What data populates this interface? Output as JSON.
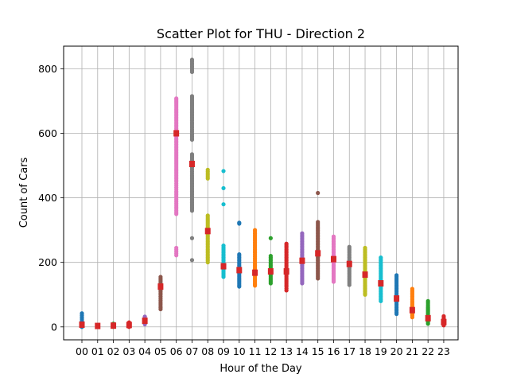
{
  "chart_data": {
    "type": "scatter",
    "title": "Scatter Plot for THU - Direction 2",
    "xlabel": "Hour of the Day",
    "ylabel": "Count of Cars",
    "categories": [
      "00",
      "01",
      "02",
      "03",
      "04",
      "05",
      "06",
      "07",
      "08",
      "09",
      "10",
      "11",
      "12",
      "13",
      "14",
      "15",
      "16",
      "17",
      "18",
      "19",
      "20",
      "21",
      "22",
      "23"
    ],
    "yticks": [
      0,
      200,
      400,
      600,
      800
    ],
    "ylim": [
      -40,
      870
    ],
    "grid": true,
    "legend": "none",
    "mean_marker_color": "#d62728",
    "hours": [
      {
        "color": "#1f77b4",
        "mean": 7,
        "values": [
          0,
          2,
          4,
          6,
          8,
          10,
          12,
          15,
          18,
          42
        ]
      },
      {
        "color": "#ff7f0e",
        "mean": 3,
        "values": [
          0,
          1,
          2,
          3,
          4,
          5,
          6
        ]
      },
      {
        "color": "#2ca02c",
        "mean": 4,
        "values": [
          0,
          1,
          2,
          3,
          4,
          5,
          6,
          8,
          10
        ]
      },
      {
        "color": "#d62728",
        "mean": 6,
        "values": [
          0,
          2,
          4,
          6,
          8,
          10,
          14
        ]
      },
      {
        "color": "#9467bd",
        "mean": 19,
        "values": [
          8,
          12,
          15,
          18,
          20,
          22,
          25,
          28,
          32
        ]
      },
      {
        "color": "#8c564b",
        "mean": 125,
        "values": [
          55,
          65,
          100,
          110,
          118,
          125,
          130,
          135,
          140,
          145,
          150,
          155
        ]
      },
      {
        "color": "#e377c2",
        "mean": 600,
        "values": [
          222,
          245,
          350,
          360,
          400,
          420,
          450,
          470,
          490,
          510,
          530,
          555,
          570,
          590,
          605,
          620,
          640,
          655,
          670,
          685,
          695,
          708
        ]
      },
      {
        "color": "#7f7f7f",
        "mean": 505,
        "values": [
          207,
          275,
          360,
          375,
          400,
          420,
          445,
          470,
          500,
          520,
          535,
          580,
          600,
          640,
          660,
          680,
          700,
          715,
          790,
          828
        ]
      },
      {
        "color": "#bcbd22",
        "mean": 297,
        "values": [
          200,
          210,
          225,
          240,
          255,
          270,
          285,
          300,
          315,
          330,
          345,
          460,
          487
        ]
      },
      {
        "color": "#17becf",
        "mean": 188,
        "values": [
          155,
          165,
          170,
          180,
          190,
          200,
          210,
          225,
          252,
          380,
          430,
          483
        ]
      },
      {
        "color": "#1f77b4",
        "mean": 176,
        "values": [
          125,
          140,
          150,
          160,
          170,
          180,
          190,
          200,
          215,
          225,
          320,
          323
        ]
      },
      {
        "color": "#ff7f0e",
        "mean": 168,
        "values": [
          128,
          135,
          145,
          155,
          165,
          175,
          185,
          195,
          230,
          262,
          300
        ]
      },
      {
        "color": "#2ca02c",
        "mean": 172,
        "values": [
          135,
          145,
          155,
          165,
          175,
          185,
          195,
          210,
          220,
          275
        ]
      },
      {
        "color": "#d62728",
        "mean": 172,
        "values": [
          113,
          125,
          140,
          150,
          160,
          170,
          180,
          190,
          200,
          215,
          230,
          245,
          258
        ]
      },
      {
        "color": "#9467bd",
        "mean": 205,
        "values": [
          135,
          145,
          160,
          175,
          190,
          205,
          220,
          235,
          250,
          265,
          280,
          290
        ]
      },
      {
        "color": "#8c564b",
        "mean": 228,
        "values": [
          150,
          165,
          180,
          195,
          210,
          225,
          240,
          255,
          270,
          290,
          310,
          325,
          415
        ]
      },
      {
        "color": "#e377c2",
        "mean": 210,
        "values": [
          140,
          155,
          170,
          185,
          200,
          215,
          230,
          245,
          260,
          280
        ]
      },
      {
        "color": "#7f7f7f",
        "mean": 195,
        "values": [
          130,
          145,
          160,
          175,
          190,
          205,
          220,
          235,
          248
        ]
      },
      {
        "color": "#bcbd22",
        "mean": 162,
        "values": [
          100,
          110,
          125,
          140,
          155,
          170,
          185,
          200,
          215,
          230,
          245
        ]
      },
      {
        "color": "#17becf",
        "mean": 135,
        "values": [
          80,
          90,
          100,
          110,
          120,
          130,
          140,
          150,
          160,
          175,
          195,
          215
        ]
      },
      {
        "color": "#1f77b4",
        "mean": 88,
        "values": [
          40,
          50,
          60,
          70,
          80,
          90,
          100,
          110,
          120,
          130,
          145,
          160
        ]
      },
      {
        "color": "#ff7f0e",
        "mean": 52,
        "values": [
          30,
          35,
          42,
          50,
          58,
          66,
          75,
          85,
          95,
          105,
          118
        ]
      },
      {
        "color": "#2ca02c",
        "mean": 27,
        "values": [
          10,
          15,
          20,
          25,
          30,
          35,
          40,
          48,
          55,
          62,
          80
        ]
      },
      {
        "color": "#d62728",
        "mean": 15,
        "values": [
          5,
          8,
          11,
          14,
          17,
          20,
          24,
          28,
          33
        ]
      }
    ]
  }
}
